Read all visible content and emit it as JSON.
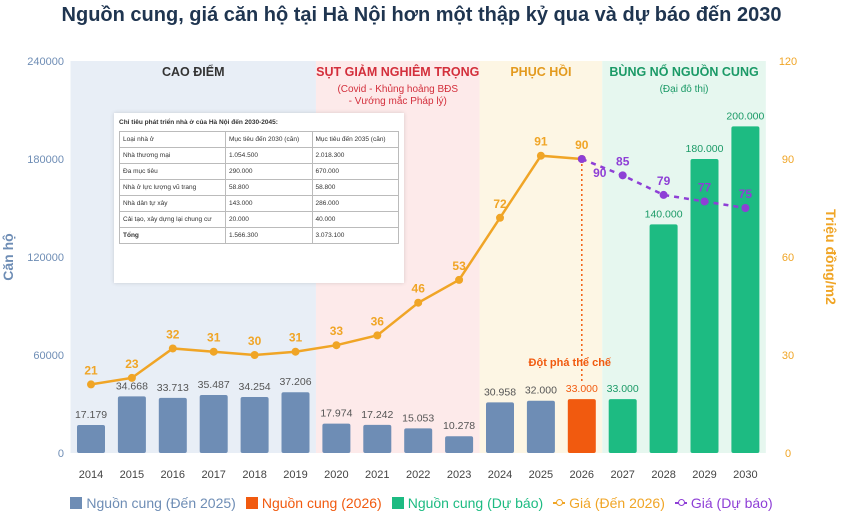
{
  "chart_data": {
    "type": "bar+line",
    "title": "Nguồn cung, giá căn hộ tại Hà Nội hơn một thập kỷ qua và dự báo đến 2030",
    "ylabel": "Căn hộ",
    "y2label": "Triệu đồng/m2",
    "ylim": [
      0,
      240000
    ],
    "y2lim": [
      0,
      120
    ],
    "yticks": [
      "0",
      "60000",
      "120000",
      "180000",
      "240000"
    ],
    "y2ticks": [
      "0",
      "30",
      "60",
      "90",
      "120"
    ],
    "categories": [
      "2014",
      "2015",
      "2016",
      "2017",
      "2018",
      "2019",
      "2020",
      "2021",
      "2022",
      "2023",
      "2024",
      "2025",
      "2026",
      "2027",
      "2028",
      "2029",
      "2030"
    ],
    "supply": [
      17179,
      34668,
      33713,
      35487,
      34254,
      37206,
      17974,
      17242,
      15053,
      10278,
      30958,
      32000,
      33000,
      33000,
      140000,
      180000,
      200000
    ],
    "supply_labels": [
      "17.179",
      "34.668",
      "33.713",
      "35.487",
      "34.254",
      "37.206",
      "17.974",
      "17.242",
      "15.053",
      "10.278",
      "30.958",
      "32.000",
      "33.000",
      "33.000",
      "140.000",
      "180.000",
      "200.000"
    ],
    "supply_group": [
      "past",
      "past",
      "past",
      "past",
      "past",
      "past",
      "past",
      "past",
      "past",
      "past",
      "past",
      "past",
      "2026",
      "forecast",
      "forecast",
      "forecast",
      "forecast"
    ],
    "price": [
      21,
      23,
      32,
      31,
      30,
      31,
      33,
      36,
      46,
      53,
      72,
      91,
      90,
      null,
      null,
      null,
      null
    ],
    "price_forecast": [
      null,
      null,
      null,
      null,
      null,
      null,
      null,
      null,
      null,
      null,
      null,
      null,
      90,
      85,
      79,
      77,
      75
    ],
    "phases": [
      {
        "label": "CAO ĐIỂM",
        "sub": "",
        "from": "2014",
        "to": "2019",
        "color": "#e8eef6",
        "text": "#333333"
      },
      {
        "label": "SỤT GIẢM NGHIÊM TRỌNG",
        "sub": "(Covid - Khủng hoảng BĐS",
        "sub2": "- Vướng mắc Pháp lý)",
        "from": "2020",
        "to": "2023",
        "color": "#fdeaea",
        "text": "#d32f3c"
      },
      {
        "label": "PHỤC HỒI",
        "sub": "",
        "from": "2024",
        "to": "2026",
        "color": "#fdf6e4",
        "text": "#e39a1e"
      },
      {
        "label": "BÙNG NỔ NGUỒN CUNG",
        "sub": "(Đại đô thị)",
        "from": "2027",
        "to": "2030",
        "color": "#e6f7ef",
        "text": "#1b9a67"
      }
    ],
    "annotation": "Đột phá thể chế",
    "legend": [
      "Nguồn cung (Đến 2025)",
      "Nguồn cung (2026)",
      "Nguồn cung (Dự báo)",
      "Giá (Đến 2026)",
      "Giá (Dự báo)"
    ],
    "colors": {
      "past": "#6e8db5",
      "2026": "#f15a0f",
      "forecast": "#1dbb82",
      "price": "#f0a526",
      "price_forecast": "#8e3fd6",
      "axis_left": "#6e8db5",
      "axis_right": "#f0a526"
    }
  },
  "table": {
    "caption": "Chỉ tiêu phát triển nhà ở của Hà Nội đến 2030-2045:",
    "header": [
      "Loại nhà ở",
      "Mục tiêu đến 2030 (căn)",
      "Mục tiêu đến 2035 (căn)"
    ],
    "rows": [
      [
        "Nhà thương mại",
        "1.054.500",
        "2.018.300"
      ],
      [
        "Đa mục tiêu",
        "290.000",
        "670.000"
      ],
      [
        "Nhà ở lực lượng vũ trang",
        "58.800",
        "58.800"
      ],
      [
        "Nhà dân tự xây",
        "143.000",
        "286.000"
      ],
      [
        "Cải tạo, xây dựng lại chung cư",
        "20.000",
        "40.000"
      ],
      [
        "Tổng",
        "1.566.300",
        "3.073.100"
      ]
    ]
  }
}
